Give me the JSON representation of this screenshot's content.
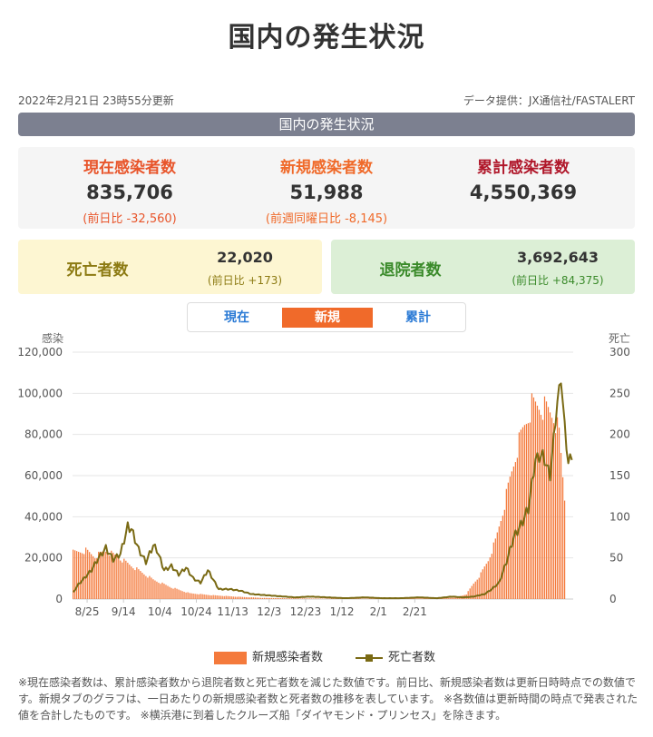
{
  "page": {
    "title": "国内の発生状況",
    "updated": "2022年2月21日 23時55分更新",
    "source": "データ提供：JX通信社/FASTALERT",
    "banner": "国内の発生状況"
  },
  "stats": {
    "current": {
      "label": "現在感染者数",
      "value": "835,706",
      "change": "(前日比 -32,560)"
    },
    "new": {
      "label": "新規感染者数",
      "value": "51,988",
      "change": "(前週同曜日比 -8,145)"
    },
    "total": {
      "label": "累計感染者数",
      "value": "4,550,369"
    }
  },
  "cards": {
    "deaths": {
      "label": "死亡者数",
      "value": "22,020",
      "change": "(前日比 +173)"
    },
    "recovered": {
      "label": "退院者数",
      "value": "3,692,643",
      "change": "(前日比 +84,375)"
    }
  },
  "tabs": [
    "現在",
    "新規",
    "累計"
  ],
  "active_tab": "新規",
  "colors": {
    "current": "#e8552b",
    "new": "#f06a2a",
    "total": "#b0172a",
    "deaths_label": "#8c7a12",
    "recovered_label": "#3a8a2a",
    "bar": "#f47a3c",
    "line": "#7a6a14"
  },
  "legend": {
    "bars": "新規感染者数",
    "line": "死亡者数"
  },
  "footnote": "※現在感染者数は、累計感染者数から退院者数と死亡者数を減じた数値です。前日比、新規感染者数は更新日時時点での数値です。新規タブのグラフは、一日あたりの新規感染者数と死者数の推移を表しています。 ※各数値は更新時間の時点で発表された値を合計したものです。 ※横浜港に到着したクルーズ船「ダイヤモンド・プリンセス」を除きます。",
  "chart_data": {
    "type": "bar",
    "left_axis_title": "感染",
    "right_axis_title": "死亡",
    "ylim": [
      0,
      120000
    ],
    "y_ticks": [
      "0",
      "20,000",
      "40,000",
      "60,000",
      "80,000",
      "100,000",
      "120,000"
    ],
    "y2lim": [
      0,
      300
    ],
    "y2_ticks": [
      "0",
      "50",
      "100",
      "150",
      "200",
      "250",
      "300"
    ],
    "x_ticks": [
      "8/25",
      "9/14",
      "10/4",
      "10/24",
      "11/13",
      "12/3",
      "12/23",
      "1/12",
      "2/1",
      "2/21"
    ],
    "bar_anchor_values": [
      [
        0,
        24000
      ],
      [
        7,
        25000
      ],
      [
        12,
        22000
      ],
      [
        18,
        25000
      ],
      [
        24,
        22000
      ],
      [
        34,
        16000
      ],
      [
        44,
        10000
      ],
      [
        54,
        6000
      ],
      [
        64,
        3000
      ],
      [
        76,
        2000
      ],
      [
        90,
        1200
      ],
      [
        104,
        600
      ],
      [
        120,
        350
      ],
      [
        140,
        200
      ],
      [
        160,
        180
      ],
      [
        180,
        250
      ],
      [
        200,
        400
      ],
      [
        210,
        700
      ],
      [
        216,
        2500
      ],
      [
        220,
        8000
      ],
      [
        224,
        13000
      ],
      [
        228,
        20000
      ],
      [
        232,
        30000
      ],
      [
        236,
        45000
      ],
      [
        240,
        62000
      ],
      [
        244,
        78000
      ],
      [
        248,
        90000
      ],
      [
        252,
        100000
      ],
      [
        256,
        100000
      ],
      [
        260,
        98000
      ],
      [
        264,
        95000
      ],
      [
        267,
        85000
      ],
      [
        270,
        52000
      ]
    ],
    "death_anchor_values": [
      [
        0,
        8
      ],
      [
        3,
        18
      ],
      [
        6,
        25
      ],
      [
        10,
        35
      ],
      [
        14,
        50
      ],
      [
        18,
        62
      ],
      [
        22,
        48
      ],
      [
        26,
        55
      ],
      [
        30,
        88
      ],
      [
        32,
        85
      ],
      [
        36,
        60
      ],
      [
        40,
        45
      ],
      [
        44,
        65
      ],
      [
        46,
        60
      ],
      [
        50,
        35
      ],
      [
        54,
        40
      ],
      [
        58,
        30
      ],
      [
        62,
        38
      ],
      [
        66,
        25
      ],
      [
        70,
        20
      ],
      [
        74,
        35
      ],
      [
        80,
        12
      ],
      [
        86,
        12
      ],
      [
        92,
        10
      ],
      [
        98,
        6
      ],
      [
        104,
        5
      ],
      [
        110,
        4
      ],
      [
        116,
        3
      ],
      [
        122,
        2
      ],
      [
        130,
        3
      ],
      [
        140,
        2
      ],
      [
        150,
        1
      ],
      [
        160,
        2
      ],
      [
        170,
        1
      ],
      [
        180,
        1
      ],
      [
        190,
        2
      ],
      [
        200,
        1
      ],
      [
        208,
        3
      ],
      [
        214,
        2
      ],
      [
        220,
        3
      ],
      [
        226,
        6
      ],
      [
        230,
        12
      ],
      [
        234,
        20
      ],
      [
        238,
        45
      ],
      [
        242,
        75
      ],
      [
        246,
        90
      ],
      [
        250,
        110
      ],
      [
        254,
        170
      ],
      [
        258,
        175
      ],
      [
        262,
        150
      ],
      [
        266,
        240
      ],
      [
        268,
        268
      ],
      [
        270,
        210
      ],
      [
        272,
        165
      ],
      [
        274,
        175
      ]
    ],
    "series": [
      {
        "name": "新規感染者数"
      },
      {
        "name": "死亡者数"
      }
    ],
    "grid": true,
    "legend_position": "bottom"
  }
}
